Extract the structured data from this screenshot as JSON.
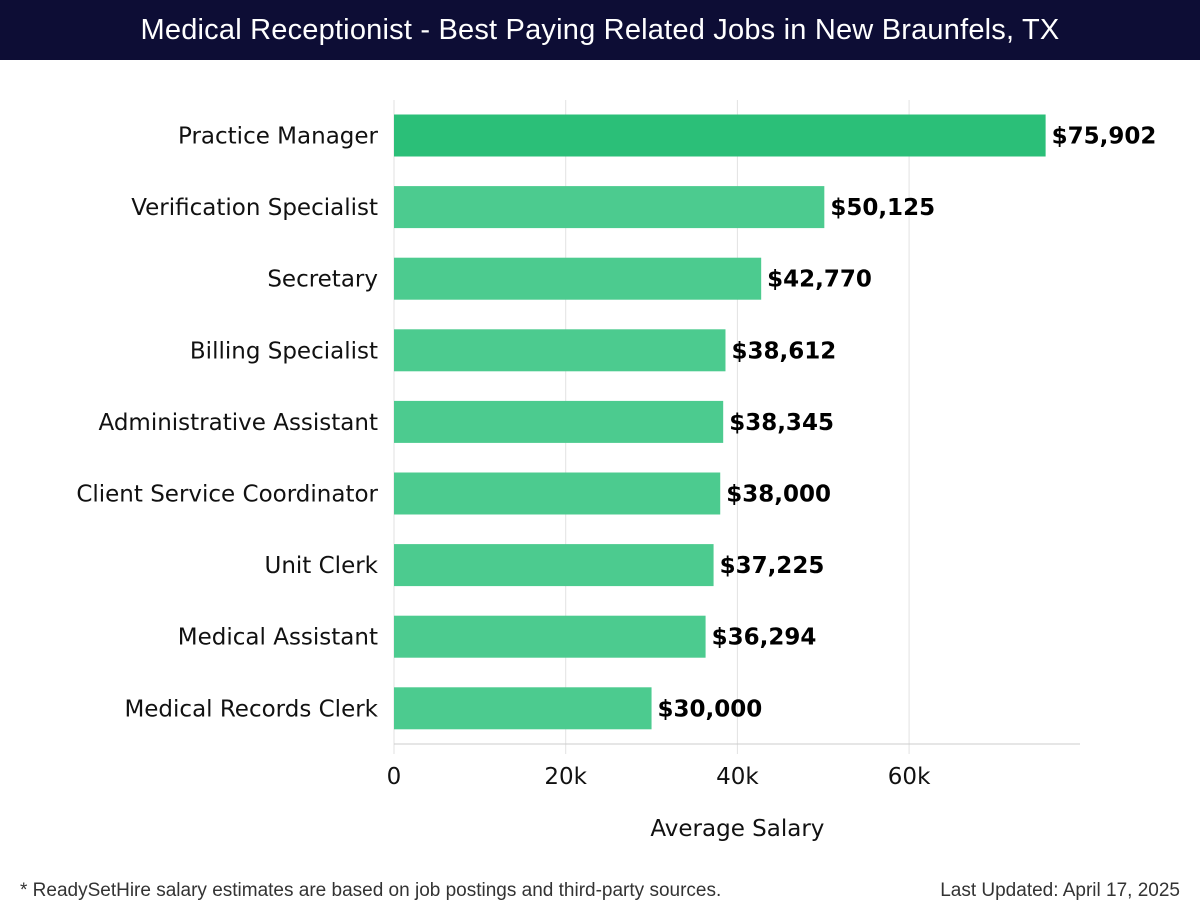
{
  "header": {
    "title": "Medical Receptionist - Best Paying Related Jobs in New Braunfels, TX"
  },
  "chart_data": {
    "type": "bar",
    "orientation": "horizontal",
    "categories": [
      "Practice Manager",
      "Verification Specialist",
      "Secretary",
      "Billing Specialist",
      "Administrative Assistant",
      "Client Service Coordinator",
      "Unit Clerk",
      "Medical Assistant",
      "Medical Records Clerk"
    ],
    "values": [
      75902,
      50125,
      42770,
      38612,
      38345,
      38000,
      37225,
      36294,
      30000
    ],
    "value_labels": [
      "$75,902",
      "$50,125",
      "$42,770",
      "$38,612",
      "$38,345",
      "$38,000",
      "$37,225",
      "$36,294",
      "$30,000"
    ],
    "xlabel": "Average Salary",
    "ylabel": "",
    "xlim": [
      0,
      80000
    ],
    "xticks": [
      0,
      20000,
      40000,
      60000
    ],
    "xtick_labels": [
      "0",
      "20k",
      "40k",
      "60k"
    ],
    "grid": "vertical",
    "colors": {
      "highlight_bar": "#2bbf78",
      "bar": "#4ccb8f",
      "grid": "#e2e2e2",
      "axis": "#cccccc"
    }
  },
  "footer": {
    "note": "* ReadySetHire salary estimates are based on job postings and third-party sources.",
    "updated": "Last Updated: April 17, 2025"
  }
}
